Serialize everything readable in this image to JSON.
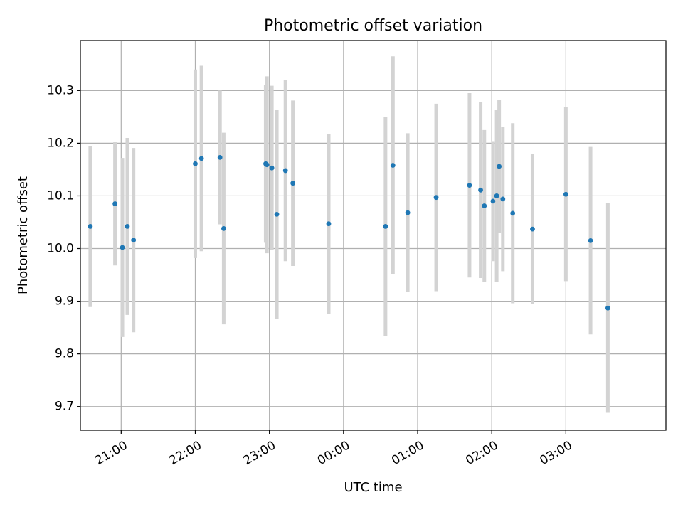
{
  "chart_data": {
    "type": "scatter",
    "title": "Photometric offset variation",
    "xlabel": "UTC time",
    "ylabel": "Photometric offset",
    "x_tick_labels": [
      "21:00",
      "22:00",
      "23:00",
      "00:00",
      "01:00",
      "02:00",
      "03:00"
    ],
    "y_ticks": [
      9.7,
      9.8,
      9.9,
      10.0,
      10.1,
      10.2,
      10.3
    ],
    "y_tick_labels": [
      "9.7",
      "9.8",
      "9.9",
      "10.0",
      "10.1",
      "10.2",
      "10.3"
    ],
    "x_range": [
      "20:27",
      "04:21"
    ],
    "ylim": [
      9.655,
      10.395
    ],
    "grid": true,
    "colors": {
      "points": "#1f77b4",
      "error_bars": "#d3d3d3",
      "grid": "#b0b0b0"
    },
    "series": [
      {
        "points": [
          {
            "time": "20:35",
            "y": 10.042,
            "err": 0.153
          },
          {
            "time": "20:55",
            "y": 10.085,
            "err": 0.117
          },
          {
            "time": "21:01",
            "y": 10.002,
            "err": 0.17
          },
          {
            "time": "21:05",
            "y": 10.042,
            "err": 0.168
          },
          {
            "time": "21:10",
            "y": 10.016,
            "err": 0.175
          },
          {
            "time": "22:00",
            "y": 10.161,
            "err": 0.179
          },
          {
            "time": "22:05",
            "y": 10.171,
            "err": 0.176
          },
          {
            "time": "22:20",
            "y": 10.173,
            "err": 0.127
          },
          {
            "time": "22:23",
            "y": 10.038,
            "err": 0.182
          },
          {
            "time": "22:57",
            "y": 10.161,
            "err": 0.15
          },
          {
            "time": "22:58",
            "y": 10.159,
            "err": 0.168
          },
          {
            "time": "23:02",
            "y": 10.153,
            "err": 0.156
          },
          {
            "time": "23:06",
            "y": 10.065,
            "err": 0.199
          },
          {
            "time": "23:13",
            "y": 10.148,
            "err": 0.172
          },
          {
            "time": "23:19",
            "y": 10.124,
            "err": 0.157
          },
          {
            "time": "23:48",
            "y": 10.047,
            "err": 0.171
          },
          {
            "time": "00:34",
            "y": 10.042,
            "err": 0.208
          },
          {
            "time": "00:40",
            "y": 10.158,
            "err": 0.207
          },
          {
            "time": "00:52",
            "y": 10.068,
            "err": 0.151
          },
          {
            "time": "01:15",
            "y": 10.097,
            "err": 0.178
          },
          {
            "time": "01:42",
            "y": 10.12,
            "err": 0.175
          },
          {
            "time": "01:51",
            "y": 10.111,
            "err": 0.167
          },
          {
            "time": "01:54",
            "y": 10.081,
            "err": 0.144
          },
          {
            "time": "02:01",
            "y": 10.09,
            "err": 0.114
          },
          {
            "time": "02:04",
            "y": 10.1,
            "err": 0.163
          },
          {
            "time": "02:06",
            "y": 10.156,
            "err": 0.126
          },
          {
            "time": "02:09",
            "y": 10.094,
            "err": 0.137
          },
          {
            "time": "02:17",
            "y": 10.067,
            "err": 0.171
          },
          {
            "time": "02:33",
            "y": 10.037,
            "err": 0.143
          },
          {
            "time": "03:00",
            "y": 10.103,
            "err": 0.165
          },
          {
            "time": "03:20",
            "y": 10.015,
            "err": 0.178
          },
          {
            "time": "03:34",
            "y": 9.887,
            "err": 0.199
          }
        ]
      }
    ]
  }
}
